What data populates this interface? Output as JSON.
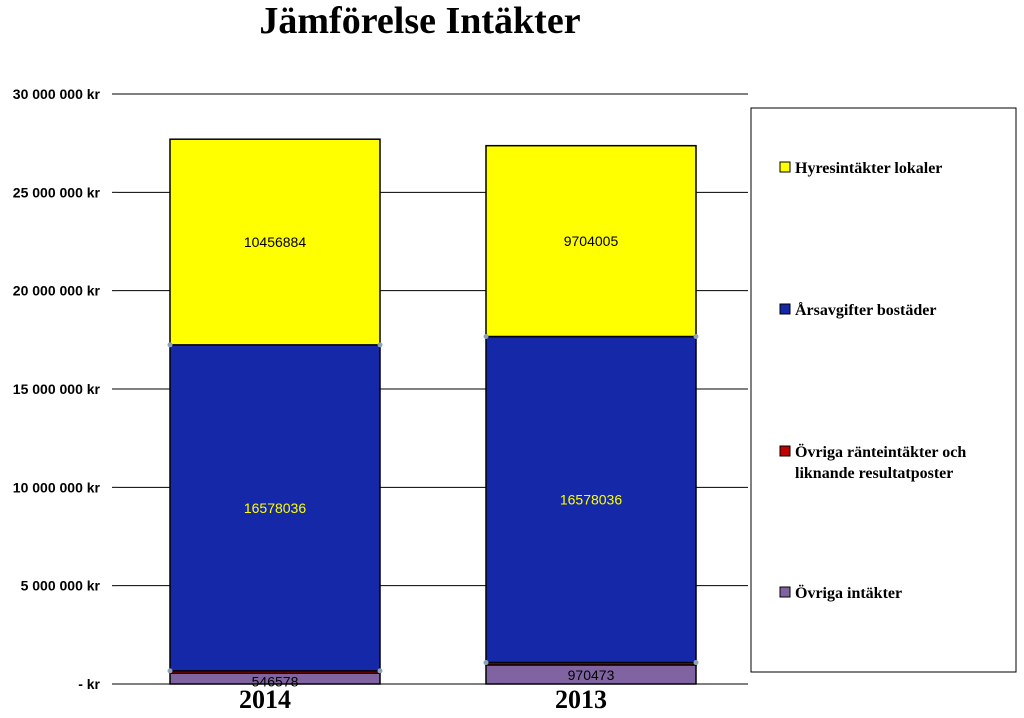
{
  "chart_data": {
    "type": "bar",
    "stacked": true,
    "title": "Jämförelse Intäkter",
    "categories": [
      "2014",
      "2013"
    ],
    "ylim": [
      0,
      30000000
    ],
    "yticks": [
      0,
      5000000,
      10000000,
      15000000,
      20000000,
      25000000,
      30000000
    ],
    "ytick_labels": [
      "- kr",
      "5 000 000 kr",
      "10 000 000 kr",
      "15 000 000 kr",
      "20 000 000 kr",
      "25 000 000 kr",
      "30 000 000 kr"
    ],
    "grid": true,
    "legend_position": "right",
    "series": [
      {
        "name": "Övriga intäkter",
        "values": [
          546578,
          970473
        ],
        "labels": [
          "546578",
          "970473"
        ],
        "color": "#8064A2",
        "label_color": "#000000"
      },
      {
        "name": "Övriga ränteintäkter och liknande resultatposter",
        "legend_lines": [
          "Övriga ränteintäkter och",
          "liknande resultatposter"
        ],
        "values": [
          120000,
          120000
        ],
        "labels": [
          "",
          ""
        ],
        "color": "#C00000",
        "label_color": "#000000"
      },
      {
        "name": "Årsavgifter bostäder",
        "values": [
          16578036,
          16578036
        ],
        "labels": [
          "16578036",
          "16578036"
        ],
        "color": "#1428A8",
        "label_color": "#FFFF00"
      },
      {
        "name": "Hyresintäkter lokaler",
        "values": [
          10456884,
          9704005
        ],
        "labels": [
          "10456884",
          "9704005"
        ],
        "color": "#FFFF00",
        "label_color": "#000000"
      }
    ]
  }
}
